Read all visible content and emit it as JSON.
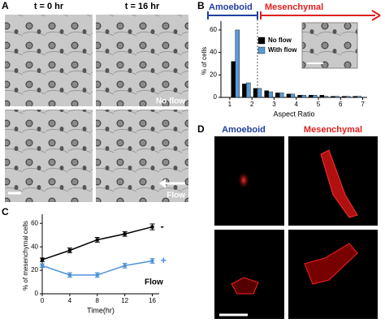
{
  "panel_a": {
    "label": "A",
    "headers": [
      "t = 0 hr",
      "t = 16 hr"
    ],
    "annotations": [
      "No flow",
      "Flow"
    ]
  },
  "panel_d": {
    "label": "D",
    "headers": [
      "Amoeboid",
      "Mesenchymal"
    ]
  },
  "chart_data": [
    {
      "type": "bar",
      "label": "B",
      "annotations": [
        "Amoeboid",
        "Mesenchymal"
      ],
      "x": [
        1.25,
        1.75,
        2.25,
        2.75,
        3.25,
        3.75,
        4.25,
        4.75,
        5.25,
        5.75,
        6.25,
        6.75
      ],
      "series": [
        {
          "name": "No flow",
          "color": "#000000",
          "values": [
            32,
            12,
            8,
            6,
            4,
            3,
            2,
            2,
            2,
            1,
            1,
            1
          ]
        },
        {
          "name": "With flow",
          "color": "#5b9bd5",
          "values": [
            60,
            13,
            8,
            5,
            4,
            3,
            2,
            2,
            1,
            1,
            1,
            1
          ]
        }
      ],
      "xlabel": "Aspect Ratio",
      "ylabel": "% of cells",
      "xlim": [
        0.6,
        7.2
      ],
      "xticks": [
        1,
        2,
        3,
        4,
        5,
        6,
        7
      ],
      "ylim": [
        0,
        65
      ],
      "yticks": [
        0,
        20,
        40,
        60
      ],
      "legend": "upper-right"
    },
    {
      "type": "line",
      "label": "C",
      "x": [
        0,
        4,
        8,
        12,
        16
      ],
      "series": [
        {
          "name": "-",
          "color": "#000000",
          "values": [
            29,
            37,
            46,
            51,
            57
          ],
          "errors": [
            1.5,
            2,
            2,
            2,
            2.5
          ]
        },
        {
          "name": "+",
          "color": "#4a90d9",
          "values": [
            24,
            16,
            16,
            24,
            28
          ],
          "errors": [
            1.5,
            2,
            2,
            2,
            2
          ]
        }
      ],
      "legend_title": "Flow",
      "xlabel": "Time(hr)",
      "ylabel": "% of mesenchymal cells",
      "xlim": [
        0,
        17
      ],
      "xticks": [
        0,
        4,
        8,
        12,
        16
      ],
      "ylim": [
        0,
        65
      ],
      "yticks": [
        0,
        20,
        40,
        60
      ]
    }
  ]
}
